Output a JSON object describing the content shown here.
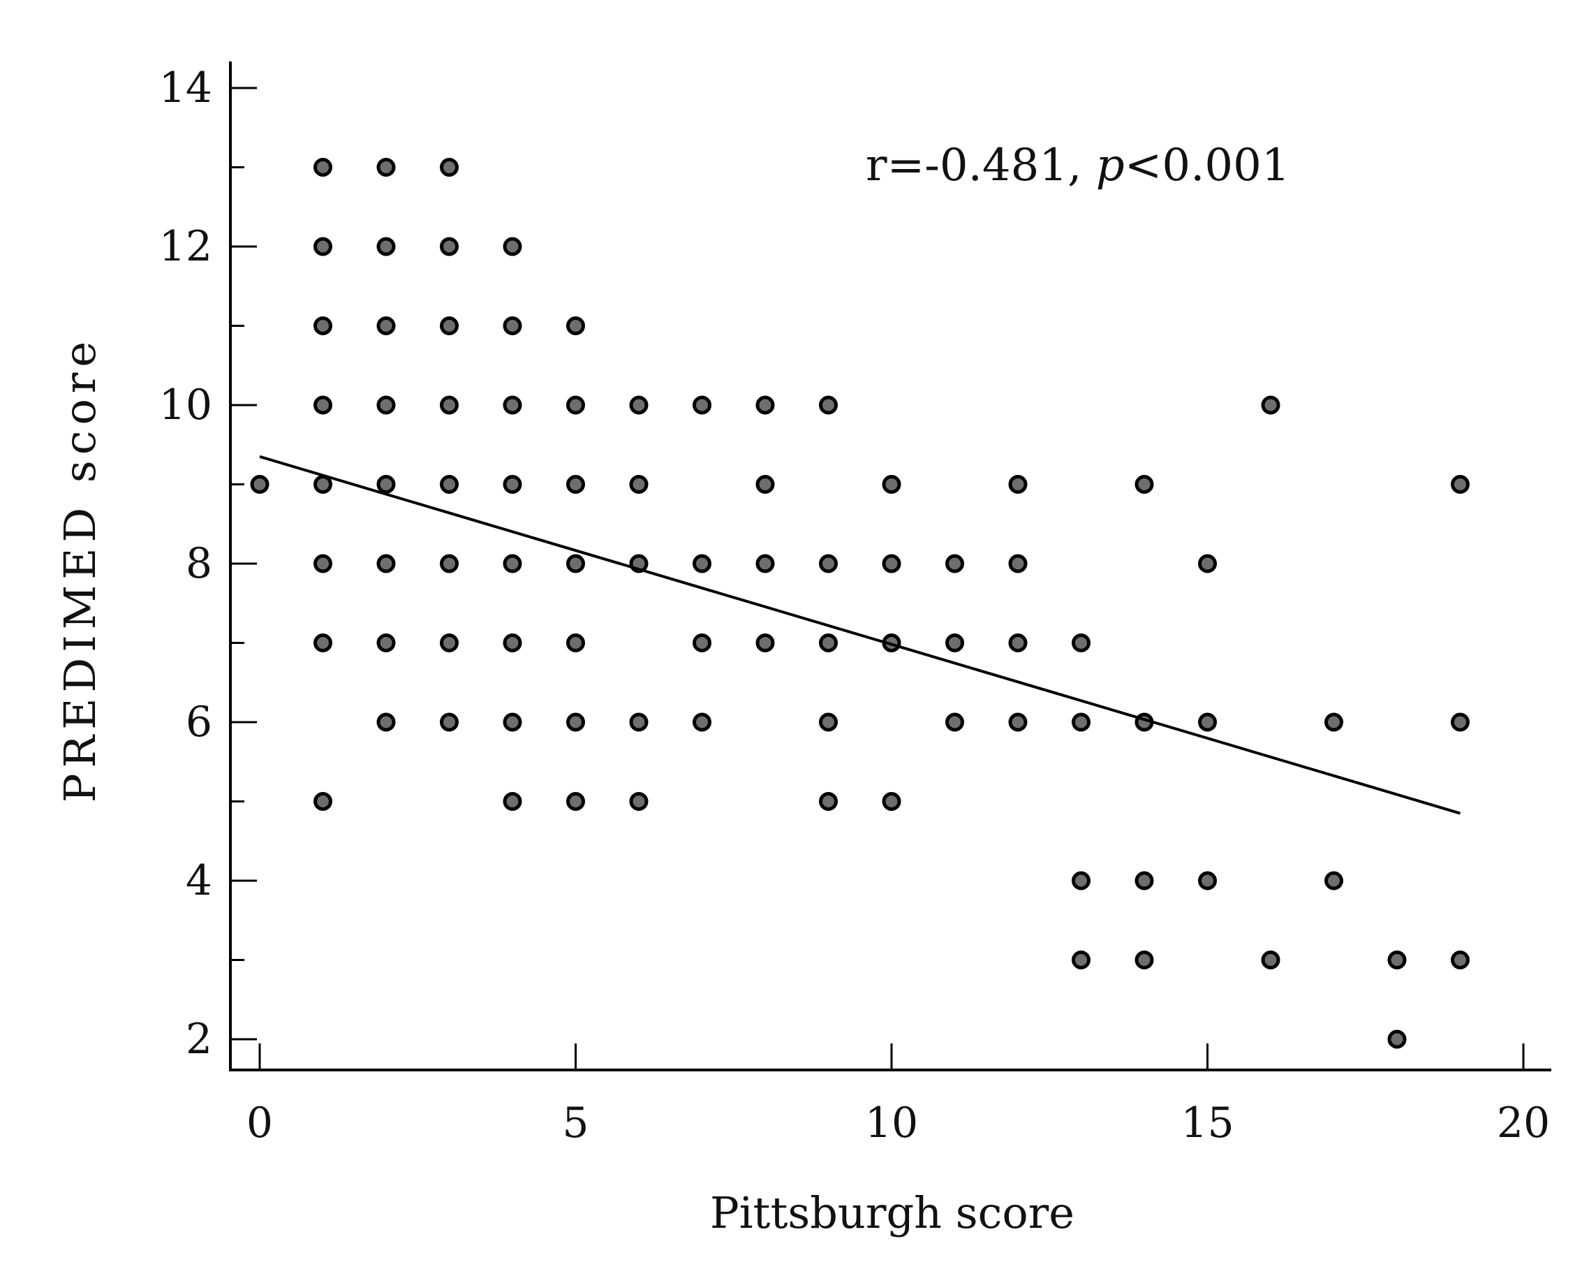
{
  "chart_data": {
    "type": "scatter",
    "title": "",
    "xlabel": "Pittsburgh score",
    "ylabel": "PREDIMED score",
    "annotation": {
      "r_part": "r=-0.481, ",
      "p_italic": "p",
      "p_rest": "<0.001"
    },
    "xlim": [
      0,
      20
    ],
    "ylim": [
      2,
      14
    ],
    "xticks": [
      0,
      5,
      10,
      15,
      20
    ],
    "yticks": [
      2,
      4,
      6,
      8,
      10,
      12,
      14
    ],
    "grid": false,
    "trendline": {
      "x": [
        0,
        19
      ],
      "y": [
        9.35,
        4.85
      ]
    },
    "points": [
      [
        0,
        9
      ],
      [
        1,
        13
      ],
      [
        2,
        13
      ],
      [
        3,
        13
      ],
      [
        1,
        12
      ],
      [
        2,
        12
      ],
      [
        3,
        12
      ],
      [
        4,
        12
      ],
      [
        1,
        11
      ],
      [
        2,
        11
      ],
      [
        3,
        11
      ],
      [
        4,
        11
      ],
      [
        5,
        11
      ],
      [
        1,
        10
      ],
      [
        2,
        10
      ],
      [
        3,
        10
      ],
      [
        4,
        10
      ],
      [
        5,
        10
      ],
      [
        6,
        10
      ],
      [
        7,
        10
      ],
      [
        8,
        10
      ],
      [
        9,
        10
      ],
      [
        16,
        10
      ],
      [
        1,
        9
      ],
      [
        2,
        9
      ],
      [
        3,
        9
      ],
      [
        4,
        9
      ],
      [
        5,
        9
      ],
      [
        6,
        9
      ],
      [
        8,
        9
      ],
      [
        10,
        9
      ],
      [
        12,
        9
      ],
      [
        14,
        9
      ],
      [
        19,
        9
      ],
      [
        1,
        8
      ],
      [
        2,
        8
      ],
      [
        3,
        8
      ],
      [
        4,
        8
      ],
      [
        5,
        8
      ],
      [
        6,
        8
      ],
      [
        7,
        8
      ],
      [
        8,
        8
      ],
      [
        9,
        8
      ],
      [
        10,
        8
      ],
      [
        11,
        8
      ],
      [
        12,
        8
      ],
      [
        15,
        8
      ],
      [
        1,
        7
      ],
      [
        2,
        7
      ],
      [
        3,
        7
      ],
      [
        4,
        7
      ],
      [
        5,
        7
      ],
      [
        7,
        7
      ],
      [
        8,
        7
      ],
      [
        9,
        7
      ],
      [
        10,
        7
      ],
      [
        11,
        7
      ],
      [
        12,
        7
      ],
      [
        13,
        7
      ],
      [
        2,
        6
      ],
      [
        3,
        6
      ],
      [
        4,
        6
      ],
      [
        5,
        6
      ],
      [
        6,
        6
      ],
      [
        7,
        6
      ],
      [
        9,
        6
      ],
      [
        11,
        6
      ],
      [
        12,
        6
      ],
      [
        13,
        6
      ],
      [
        14,
        6
      ],
      [
        15,
        6
      ],
      [
        17,
        6
      ],
      [
        19,
        6
      ],
      [
        1,
        5
      ],
      [
        4,
        5
      ],
      [
        5,
        5
      ],
      [
        6,
        5
      ],
      [
        9,
        5
      ],
      [
        10,
        5
      ],
      [
        13,
        4
      ],
      [
        14,
        4
      ],
      [
        15,
        4
      ],
      [
        17,
        4
      ],
      [
        13,
        3
      ],
      [
        14,
        3
      ],
      [
        16,
        3
      ],
      [
        18,
        3
      ],
      [
        19,
        3
      ],
      [
        18,
        2
      ]
    ]
  }
}
